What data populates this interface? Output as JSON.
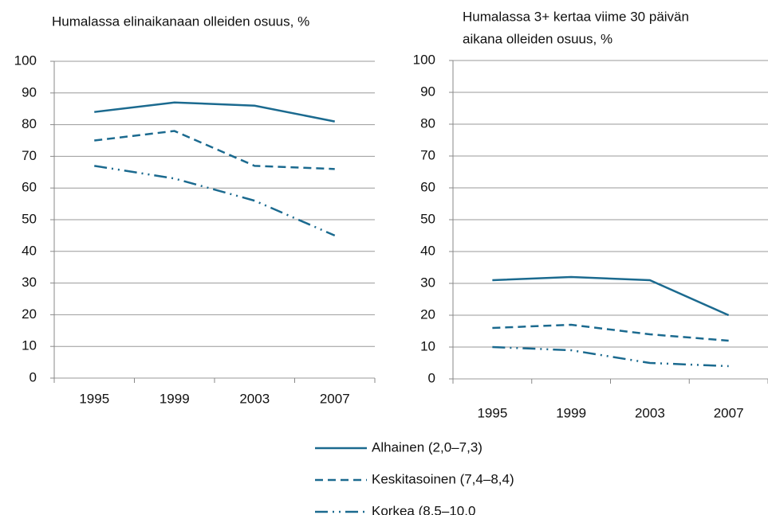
{
  "chart_data": [
    {
      "type": "line",
      "title": [
        "Humalassa elinaikanaan olleiden osuus, %"
      ],
      "categories": [
        "1995",
        "1999",
        "2003",
        "2007"
      ],
      "series": [
        {
          "name": "Alhainen (2,0–7,3)",
          "color": "#1b6a8f",
          "style": "solid",
          "values": [
            84,
            87,
            86,
            81
          ]
        },
        {
          "name": "Keskitasoinen (7,4–8,4)",
          "color": "#1b6a8f",
          "style": "dashed",
          "values": [
            75,
            78,
            67,
            66
          ]
        },
        {
          "name": "Korkea (8,5–10,0",
          "color": "#1b6a8f",
          "style": "dashdot",
          "values": [
            67,
            63,
            56,
            45
          ]
        }
      ],
      "ylim": [
        0,
        100
      ],
      "yticks": [
        0,
        10,
        20,
        30,
        40,
        50,
        60,
        70,
        80,
        90,
        100
      ],
      "grid": true
    },
    {
      "type": "line",
      "title": [
        "Humalassa 3+ kertaa viime 30 päivän",
        "aikana olleiden osuus, %"
      ],
      "categories": [
        "1995",
        "1999",
        "2003",
        "2007"
      ],
      "series": [
        {
          "color": "#1b6a8f",
          "style": "solid",
          "values": [
            31,
            32,
            31,
            20
          ]
        },
        {
          "color": "#1b6a8f",
          "style": "dashed",
          "values": [
            16,
            17,
            14,
            12
          ]
        },
        {
          "color": "#1b6a8f",
          "style": "dashdot",
          "values": [
            10,
            9,
            5,
            4
          ]
        }
      ],
      "ylim": [
        0,
        100
      ],
      "yticks": [
        0,
        10,
        20,
        30,
        40,
        50,
        60,
        70,
        80,
        90,
        100
      ],
      "grid": true
    }
  ]
}
